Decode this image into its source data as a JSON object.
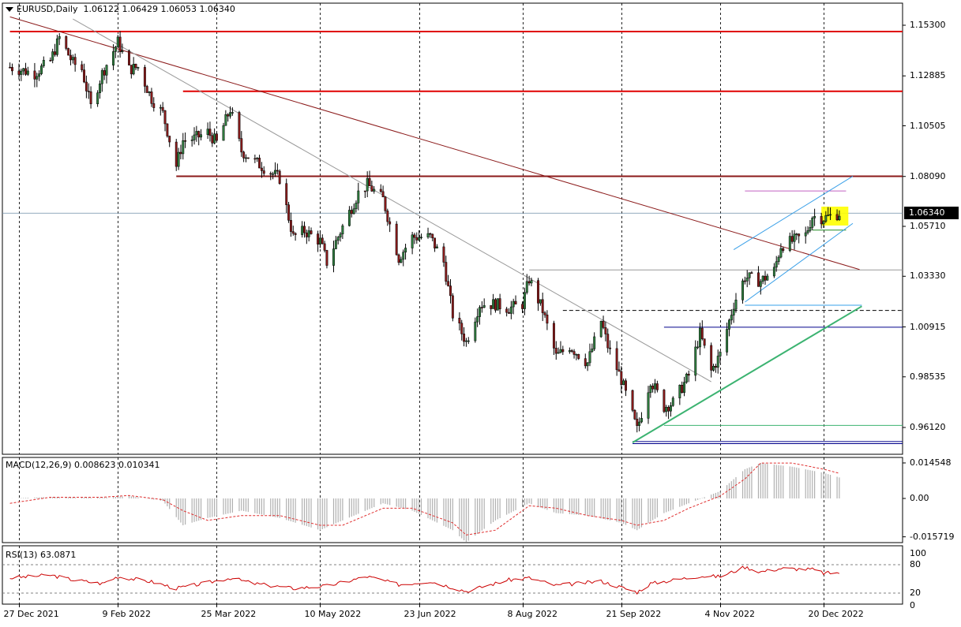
{
  "header": {
    "symbol": "EURUSD,Daily",
    "ohlc": "1.06122 1.06429 1.06053 1.06340",
    "dropdown_icon": "triangle-down-icon"
  },
  "price_axis": {
    "labels": [
      "1.15300",
      "1.12885",
      "1.10505",
      "1.08090",
      "1.05710",
      "1.03330",
      "1.00915",
      "0.98535",
      "0.96120"
    ],
    "values": [
      1.153,
      1.12885,
      1.10505,
      1.0809,
      1.0571,
      1.0333,
      1.00915,
      0.98535,
      0.9612
    ],
    "last_price": "1.06340"
  },
  "date_axis": {
    "labels": [
      "27 Dec 2021",
      "9 Feb 2022",
      "25 Mar 2022",
      "10 May 2022",
      "23 Jun 2022",
      "8 Aug 2022",
      "21 Sep 2022",
      "4 Nov 2022",
      "20 Dec 2022"
    ]
  },
  "macd": {
    "header": "MACD(12,26,9) 0.008623 0.010341",
    "axis_labels": [
      "0.014548",
      "0.00",
      "-0.015719"
    ]
  },
  "rsi": {
    "header": "RSI(13) 63.0871",
    "axis_labels": [
      "100",
      "80",
      "20",
      "0"
    ]
  },
  "colors": {
    "bull": "#2f7f3f",
    "bear": "#8b1a1a",
    "resistance": "#e00000",
    "trendline": "#8b1a1a",
    "channel": "#3aa0e8",
    "support_trend": "#3cb371",
    "signal": "#e03030",
    "rsi_line": "#cc0000",
    "highlight": "#ffff00"
  },
  "chart_data": {
    "type": "candlestick",
    "symbol": "EURUSD",
    "timeframe": "Daily",
    "last": {
      "open": 1.06122,
      "high": 1.06429,
      "low": 1.06053,
      "close": 1.0634
    },
    "ylim": [
      0.954,
      1.158
    ],
    "x_range": [
      "2021-12-27",
      "2023-01-06"
    ],
    "closes_path": [
      [
        "2021-12-23",
        1.133
      ],
      [
        "2021-12-27",
        1.132
      ],
      [
        "2022-01-03",
        1.13
      ],
      [
        "2022-01-10",
        1.136
      ],
      [
        "2022-01-14",
        1.147
      ],
      [
        "2022-01-20",
        1.135
      ],
      [
        "2022-01-24",
        1.132
      ],
      [
        "2022-01-28",
        1.114
      ],
      [
        "2022-02-02",
        1.13
      ],
      [
        "2022-02-09",
        1.145
      ],
      [
        "2022-02-14",
        1.132
      ],
      [
        "2022-02-18",
        1.133
      ],
      [
        "2022-02-24",
        1.118
      ],
      [
        "2022-03-01",
        1.111
      ],
      [
        "2022-03-07",
        1.086
      ],
      [
        "2022-03-10",
        1.098
      ],
      [
        "2022-03-15",
        1.099
      ],
      [
        "2022-03-21",
        1.102
      ],
      [
        "2022-03-25",
        1.097
      ],
      [
        "2022-03-31",
        1.113
      ],
      [
        "2022-04-05",
        1.093
      ],
      [
        "2022-04-11",
        1.088
      ],
      [
        "2022-04-18",
        1.083
      ],
      [
        "2022-04-22",
        1.08
      ],
      [
        "2022-04-28",
        1.052
      ],
      [
        "2022-05-03",
        1.055
      ],
      [
        "2022-05-10",
        1.05
      ],
      [
        "2022-05-13",
        1.04
      ],
      [
        "2022-05-20",
        1.057
      ],
      [
        "2022-05-27",
        1.073
      ],
      [
        "2022-05-31",
        1.077
      ],
      [
        "2022-06-07",
        1.07
      ],
      [
        "2022-06-14",
        1.042
      ],
      [
        "2022-06-20",
        1.052
      ],
      [
        "2022-06-23",
        1.052
      ],
      [
        "2022-06-28",
        1.052
      ],
      [
        "2022-07-04",
        1.04
      ],
      [
        "2022-07-08",
        1.015
      ],
      [
        "2022-07-14",
        1.002
      ],
      [
        "2022-07-20",
        1.02
      ],
      [
        "2022-07-27",
        1.02
      ],
      [
        "2022-08-02",
        1.018
      ],
      [
        "2022-08-08",
        1.02
      ],
      [
        "2022-08-11",
        1.032
      ],
      [
        "2022-08-17",
        1.017
      ],
      [
        "2022-08-23",
        0.995
      ],
      [
        "2022-08-29",
        1.0
      ],
      [
        "2022-09-06",
        0.992
      ],
      [
        "2022-09-12",
        1.012
      ],
      [
        "2022-09-15",
        1.0
      ],
      [
        "2022-09-21",
        0.984
      ],
      [
        "2022-09-28",
        0.96
      ],
      [
        "2022-10-04",
        0.984
      ],
      [
        "2022-10-10",
        0.971
      ],
      [
        "2022-10-14",
        0.973
      ],
      [
        "2022-10-21",
        0.986
      ],
      [
        "2022-10-26",
        1.006
      ],
      [
        "2022-10-31",
        0.988
      ],
      [
        "2022-11-04",
        0.996
      ],
      [
        "2022-11-10",
        1.02
      ],
      [
        "2022-11-15",
        1.033
      ],
      [
        "2022-11-22",
        1.031
      ],
      [
        "2022-11-28",
        1.036
      ],
      [
        "2022-12-01",
        1.048
      ],
      [
        "2022-12-06",
        1.05
      ],
      [
        "2022-12-12",
        1.053
      ],
      [
        "2022-12-15",
        1.062
      ],
      [
        "2022-12-20",
        1.061
      ],
      [
        "2022-12-23",
        1.062
      ],
      [
        "2022-12-27",
        1.0634
      ]
    ],
    "macd": {
      "ylim": [
        -0.0225,
        0.0195
      ],
      "main_histogram": [
        [
          "2021-12-23",
          0.0
        ],
        [
          "2022-01-10",
          0.0006
        ],
        [
          "2022-01-20",
          0.0004
        ],
        [
          "2022-02-02",
          0.0003
        ],
        [
          "2022-02-14",
          0.001
        ],
        [
          "2022-03-01",
          -0.001
        ],
        [
          "2022-03-10",
          -0.011
        ],
        [
          "2022-03-21",
          -0.008
        ],
        [
          "2022-04-05",
          -0.005
        ],
        [
          "2022-04-22",
          -0.008
        ],
        [
          "2022-05-10",
          -0.013
        ],
        [
          "2022-05-20",
          -0.009
        ],
        [
          "2022-06-07",
          -0.002
        ],
        [
          "2022-06-20",
          -0.005
        ],
        [
          "2022-07-08",
          -0.013
        ],
        [
          "2022-07-14",
          -0.018
        ],
        [
          "2022-07-27",
          -0.009
        ],
        [
          "2022-08-11",
          -0.002
        ],
        [
          "2022-08-23",
          -0.006
        ],
        [
          "2022-09-06",
          -0.007
        ],
        [
          "2022-09-21",
          -0.01
        ],
        [
          "2022-09-28",
          -0.013
        ],
        [
          "2022-10-10",
          -0.006
        ],
        [
          "2022-10-21",
          -0.002
        ],
        [
          "2022-11-04",
          0.003
        ],
        [
          "2022-11-15",
          0.012
        ],
        [
          "2022-11-22",
          0.0145
        ],
        [
          "2022-12-06",
          0.013
        ],
        [
          "2022-12-20",
          0.0105
        ],
        [
          "2022-12-27",
          0.0086
        ]
      ],
      "signal_line": [
        [
          "2021-12-23",
          -0.002
        ],
        [
          "2022-01-10",
          0.0005
        ],
        [
          "2022-01-20",
          0.0005
        ],
        [
          "2022-02-02",
          0.0005
        ],
        [
          "2022-02-14",
          0.0012
        ],
        [
          "2022-03-01",
          -0.0005
        ],
        [
          "2022-03-10",
          -0.005
        ],
        [
          "2022-03-21",
          -0.009
        ],
        [
          "2022-04-05",
          -0.007
        ],
        [
          "2022-04-22",
          -0.007
        ],
        [
          "2022-05-10",
          -0.011
        ],
        [
          "2022-05-20",
          -0.011
        ],
        [
          "2022-06-07",
          -0.004
        ],
        [
          "2022-06-20",
          -0.004
        ],
        [
          "2022-07-08",
          -0.01
        ],
        [
          "2022-07-14",
          -0.015
        ],
        [
          "2022-07-27",
          -0.013
        ],
        [
          "2022-08-11",
          -0.003
        ],
        [
          "2022-08-23",
          -0.004
        ],
        [
          "2022-09-06",
          -0.007
        ],
        [
          "2022-09-21",
          -0.009
        ],
        [
          "2022-09-28",
          -0.011
        ],
        [
          "2022-10-10",
          -0.009
        ],
        [
          "2022-10-21",
          -0.004
        ],
        [
          "2022-11-04",
          0.001
        ],
        [
          "2022-11-15",
          0.008
        ],
        [
          "2022-11-22",
          0.0145
        ],
        [
          "2022-12-06",
          0.0145
        ],
        [
          "2022-12-20",
          0.012
        ],
        [
          "2022-12-27",
          0.0103
        ]
      ]
    },
    "rsi": {
      "ylim": [
        0,
        100
      ],
      "levels": [
        80,
        20
      ],
      "values": [
        [
          "2021-12-23",
          52
        ],
        [
          "2022-01-10",
          58
        ],
        [
          "2022-01-20",
          48
        ],
        [
          "2022-02-02",
          40
        ],
        [
          "2022-02-09",
          55
        ],
        [
          "2022-02-24",
          44
        ],
        [
          "2022-03-07",
          30
        ],
        [
          "2022-03-21",
          42
        ],
        [
          "2022-03-31",
          52
        ],
        [
          "2022-04-11",
          40
        ],
        [
          "2022-04-28",
          30
        ],
        [
          "2022-05-13",
          35
        ],
        [
          "2022-05-31",
          55
        ],
        [
          "2022-06-14",
          38
        ],
        [
          "2022-06-28",
          45
        ],
        [
          "2022-07-14",
          24
        ],
        [
          "2022-08-02",
          48
        ],
        [
          "2022-08-11",
          52
        ],
        [
          "2022-08-23",
          36
        ],
        [
          "2022-09-12",
          45
        ],
        [
          "2022-09-28",
          22
        ],
        [
          "2022-10-04",
          40
        ],
        [
          "2022-10-26",
          56
        ],
        [
          "2022-11-04",
          55
        ],
        [
          "2022-11-15",
          75
        ],
        [
          "2022-11-22",
          65
        ],
        [
          "2022-12-01",
          72
        ],
        [
          "2022-12-15",
          70
        ],
        [
          "2022-12-20",
          62
        ],
        [
          "2022-12-27",
          63.0871
        ]
      ]
    },
    "horizontal_levels": [
      {
        "price": 1.15,
        "color": "#e00000",
        "from": "2021-12-23"
      },
      {
        "price": 1.1215,
        "color": "#e00000",
        "from": "2022-03-10"
      },
      {
        "price": 1.081,
        "color": "#8b1a1a",
        "from": "2022-03-07"
      },
      {
        "price": 1.074,
        "color": "#c060c0",
        "from": "2022-11-15",
        "to": "2022-12-30"
      },
      {
        "price": 1.0553,
        "color": "#228b22",
        "from": "2022-12-15",
        "to": "2022-12-30"
      },
      {
        "price": 1.0363,
        "color": "#999999",
        "from": "2022-08-11"
      },
      {
        "price": 1.017,
        "color": "#000000",
        "dashed": true,
        "from": "2022-08-26"
      },
      {
        "price": 1.009,
        "color": "#00008b",
        "from": "2022-10-10"
      },
      {
        "price": 0.9622,
        "color": "#3cb371",
        "from": "2022-10-10"
      },
      {
        "price": 0.9545,
        "color": "#00008b",
        "from": "2022-09-26"
      },
      {
        "price": 0.9535,
        "color": "#00008b",
        "from": "2022-09-26"
      }
    ],
    "trend_lines": [
      {
        "from": [
          "2021-12-23",
          1.157
        ],
        "to": [
          "2023-01-05",
          1.0365
        ],
        "color": "#8b1a1a"
      },
      {
        "from": [
          "2022-01-20",
          1.156
        ],
        "to": [
          "2022-10-31",
          0.983
        ],
        "color": "#999999"
      },
      {
        "from": [
          "2022-09-26",
          0.954
        ],
        "to": [
          "2023-01-06",
          1.019
        ],
        "color": "#3cb371"
      },
      {
        "from": [
          "2022-11-15",
          1.0195
        ],
        "to": [
          "2023-01-06",
          1.0195
        ],
        "color": "#3aa0e8"
      }
    ],
    "channel": [
      {
        "from": [
          "2022-11-10",
          1.046
        ],
        "to": [
          "2023-01-02",
          1.081
        ],
        "color": "#3aa0e8"
      },
      {
        "from": [
          "2022-11-15",
          1.021
        ],
        "to": [
          "2023-01-02",
          1.0585
        ],
        "color": "#3aa0e8"
      }
    ],
    "highlight_box": {
      "x0": "2022-12-19",
      "x1": "2022-12-31",
      "y0": 1.0575,
      "y1": 1.0665
    }
  }
}
